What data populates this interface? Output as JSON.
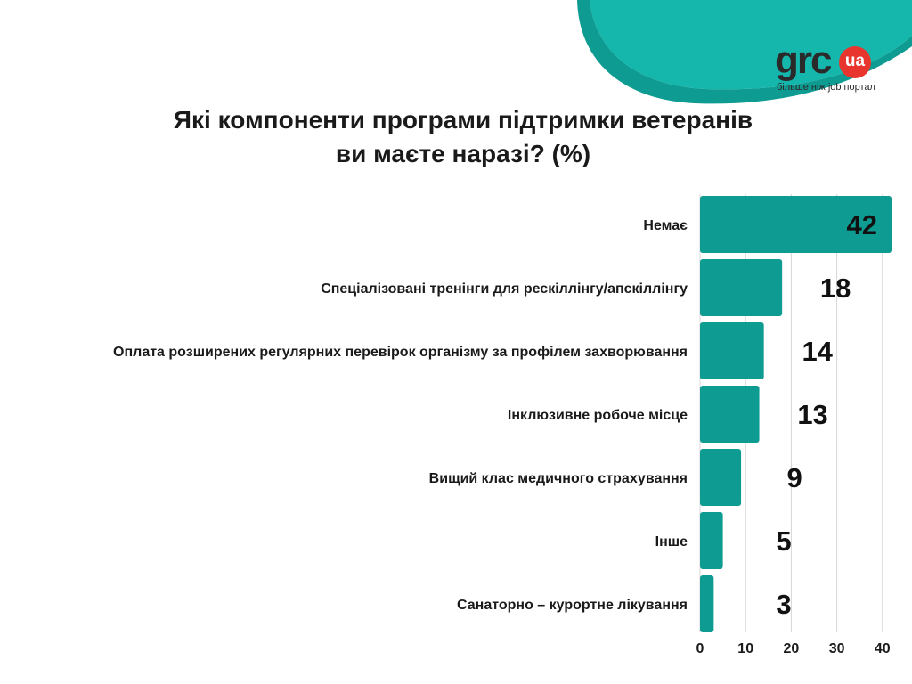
{
  "colors": {
    "accent": "#0e9b91",
    "header_dark": "#07968c",
    "header_light": "#15b7ad",
    "logo_badge": "#e8362f",
    "text": "#1a1a1a"
  },
  "header": {
    "logo": {
      "word": "grc",
      "badge": "ua",
      "tagline": "більше ніж job портал"
    }
  },
  "title": {
    "line1": "Які компоненти програми підтримки ветеранів",
    "line2": "ви маєте наразі?  (%)"
  },
  "chart_data": {
    "type": "bar",
    "orientation": "horizontal",
    "categories": [
      "Немає",
      "Спеціалізовані тренінги для рескіллінгу/апскіллінгу",
      "Оплата розширених регулярних перевірок організму за профілем захворювання",
      "Інклюзивне робоче місце",
      "Вищий клас медичного страхування",
      "Інше",
      "Санаторно – курортне лікування"
    ],
    "values": [
      42,
      18,
      14,
      13,
      9,
      5,
      3
    ],
    "xlim": [
      0,
      40
    ],
    "xticks": [
      0,
      10,
      20,
      30,
      40
    ],
    "grid": true
  }
}
